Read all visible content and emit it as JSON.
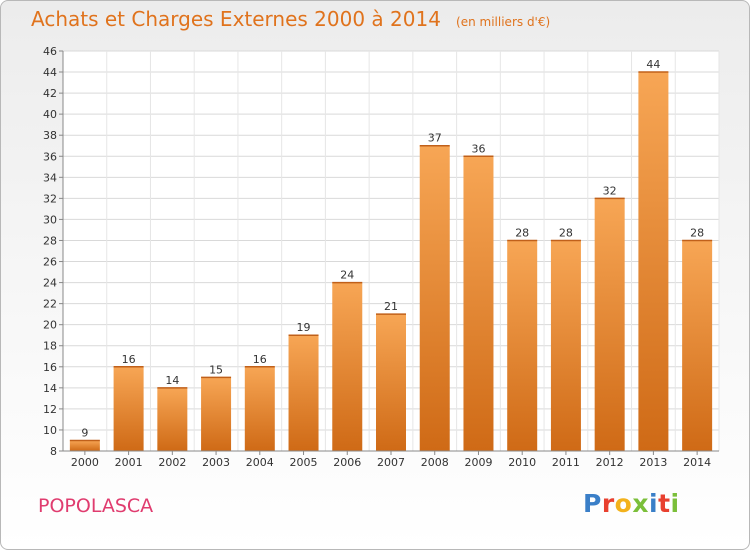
{
  "chart_data": {
    "type": "bar",
    "title": "Achats et Charges Externes 2000 à 2014",
    "unit": "(en milliers d'€)",
    "categories": [
      "2000",
      "2001",
      "2002",
      "2003",
      "2004",
      "2005",
      "2006",
      "2007",
      "2008",
      "2009",
      "2010",
      "2011",
      "2012",
      "2013",
      "2014"
    ],
    "values": [
      9,
      16,
      14,
      15,
      16,
      19,
      24,
      21,
      37,
      36,
      28,
      28,
      32,
      44,
      28
    ],
    "ylim": [
      8,
      46
    ],
    "yticks": [
      8,
      10,
      12,
      14,
      16,
      18,
      20,
      22,
      24,
      26,
      28,
      30,
      32,
      34,
      36,
      38,
      40,
      42,
      44,
      46
    ],
    "grid": true,
    "bar_color": "#e8822e"
  },
  "place_name": "POPOLASCA",
  "logo": {
    "text": "Proxiti",
    "colors": [
      "#3a7fc8",
      "#e8402f",
      "#f3b21c",
      "#7bbf3a",
      "#3a7fc8",
      "#e8402f",
      "#7bbf3a"
    ]
  }
}
